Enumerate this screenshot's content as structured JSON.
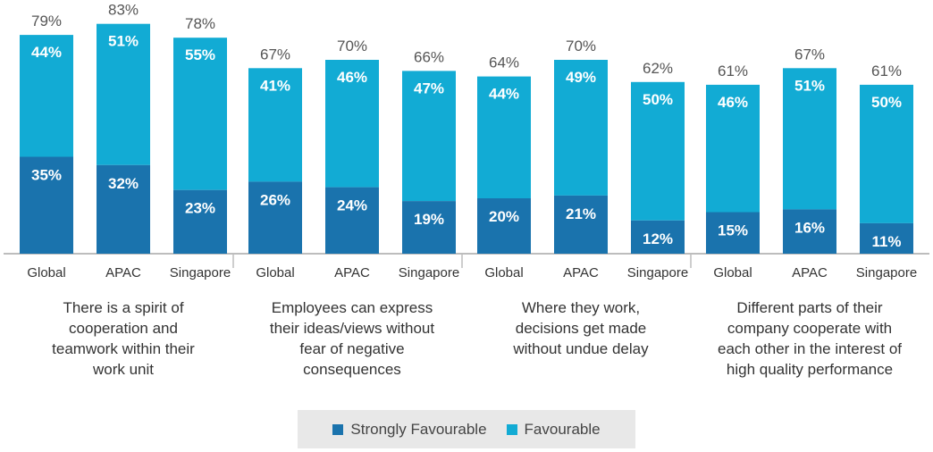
{
  "chart_data": {
    "type": "bar",
    "stacked": true,
    "ylim": [
      0,
      100
    ],
    "grid": false,
    "legend_position": "bottom-center",
    "groups": [
      {
        "label": "There is a spirit of cooperation and teamwork within their work unit",
        "label_lines": [
          "There is a spirit of",
          "cooperation and",
          "teamwork within their",
          "work unit"
        ],
        "categories": [
          "Global",
          "APAC",
          "Singapore"
        ],
        "strongly_favourable": [
          35,
          32,
          23
        ],
        "favourable": [
          44,
          51,
          55
        ],
        "totals": [
          79,
          83,
          78
        ]
      },
      {
        "label": "Employees can express their ideas/views without fear of negative consequences",
        "label_lines": [
          "Employees can express",
          "their ideas/views without",
          "fear of negative",
          "consequences"
        ],
        "categories": [
          "Global",
          "APAC",
          "Singapore"
        ],
        "strongly_favourable": [
          26,
          24,
          19
        ],
        "favourable": [
          41,
          46,
          47
        ],
        "totals": [
          67,
          70,
          66
        ]
      },
      {
        "label": "Where they work, decisions get made without undue delay",
        "label_lines": [
          "Where they work,",
          "decisions get made",
          "without undue delay"
        ],
        "categories": [
          "Global",
          "APAC",
          "Singapore"
        ],
        "strongly_favourable": [
          20,
          21,
          12
        ],
        "favourable": [
          44,
          49,
          50
        ],
        "totals": [
          64,
          70,
          62
        ]
      },
      {
        "label": "Different parts of their company cooperate with each other in the interest of high quality performance",
        "label_lines": [
          "Different parts of their",
          "company cooperate with",
          "each other in the interest of",
          "high quality performance"
        ],
        "categories": [
          "Global",
          "APAC",
          "Singapore"
        ],
        "strongly_favourable": [
          15,
          16,
          11
        ],
        "favourable": [
          46,
          51,
          50
        ],
        "totals": [
          61,
          67,
          61
        ]
      }
    ],
    "series": [
      {
        "name": "Strongly Favourable",
        "color": "#1a73ad"
      },
      {
        "name": "Favourable",
        "color": "#12abd4"
      }
    ]
  },
  "legend": {
    "strongly_label": "Strongly Favourable",
    "favourable_label": "Favourable"
  },
  "colors": {
    "strongly": "#1a73ad",
    "favourable": "#12abd4",
    "axis": "#bdbdbd",
    "total_text": "#555555",
    "category_text": "#333333",
    "group_text": "#333333"
  }
}
